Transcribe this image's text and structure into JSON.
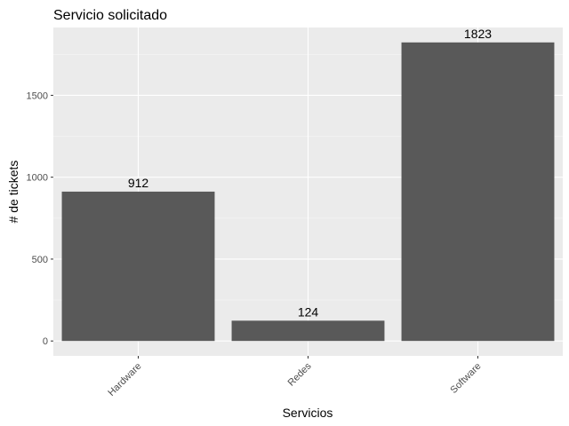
{
  "chart_data": {
    "type": "bar",
    "title": "Servicio solicitado",
    "xlabel": "Servicios",
    "ylabel": "# de tickets",
    "categories": [
      "Hardware",
      "Redes",
      "Software"
    ],
    "values": [
      912,
      124,
      1823
    ],
    "data_labels": [
      "912",
      "124",
      "1823"
    ],
    "y_ticks": [
      0,
      500,
      1000,
      1500
    ],
    "ylim": [
      -91,
      1914
    ],
    "grid": true,
    "legend": "none",
    "x_tick_rotation": 45,
    "colors": {
      "bar": "#595959",
      "panel_background": "#ebebeb",
      "grid_major": "#ffffff",
      "grid_minor": "#f5f5f5"
    }
  }
}
